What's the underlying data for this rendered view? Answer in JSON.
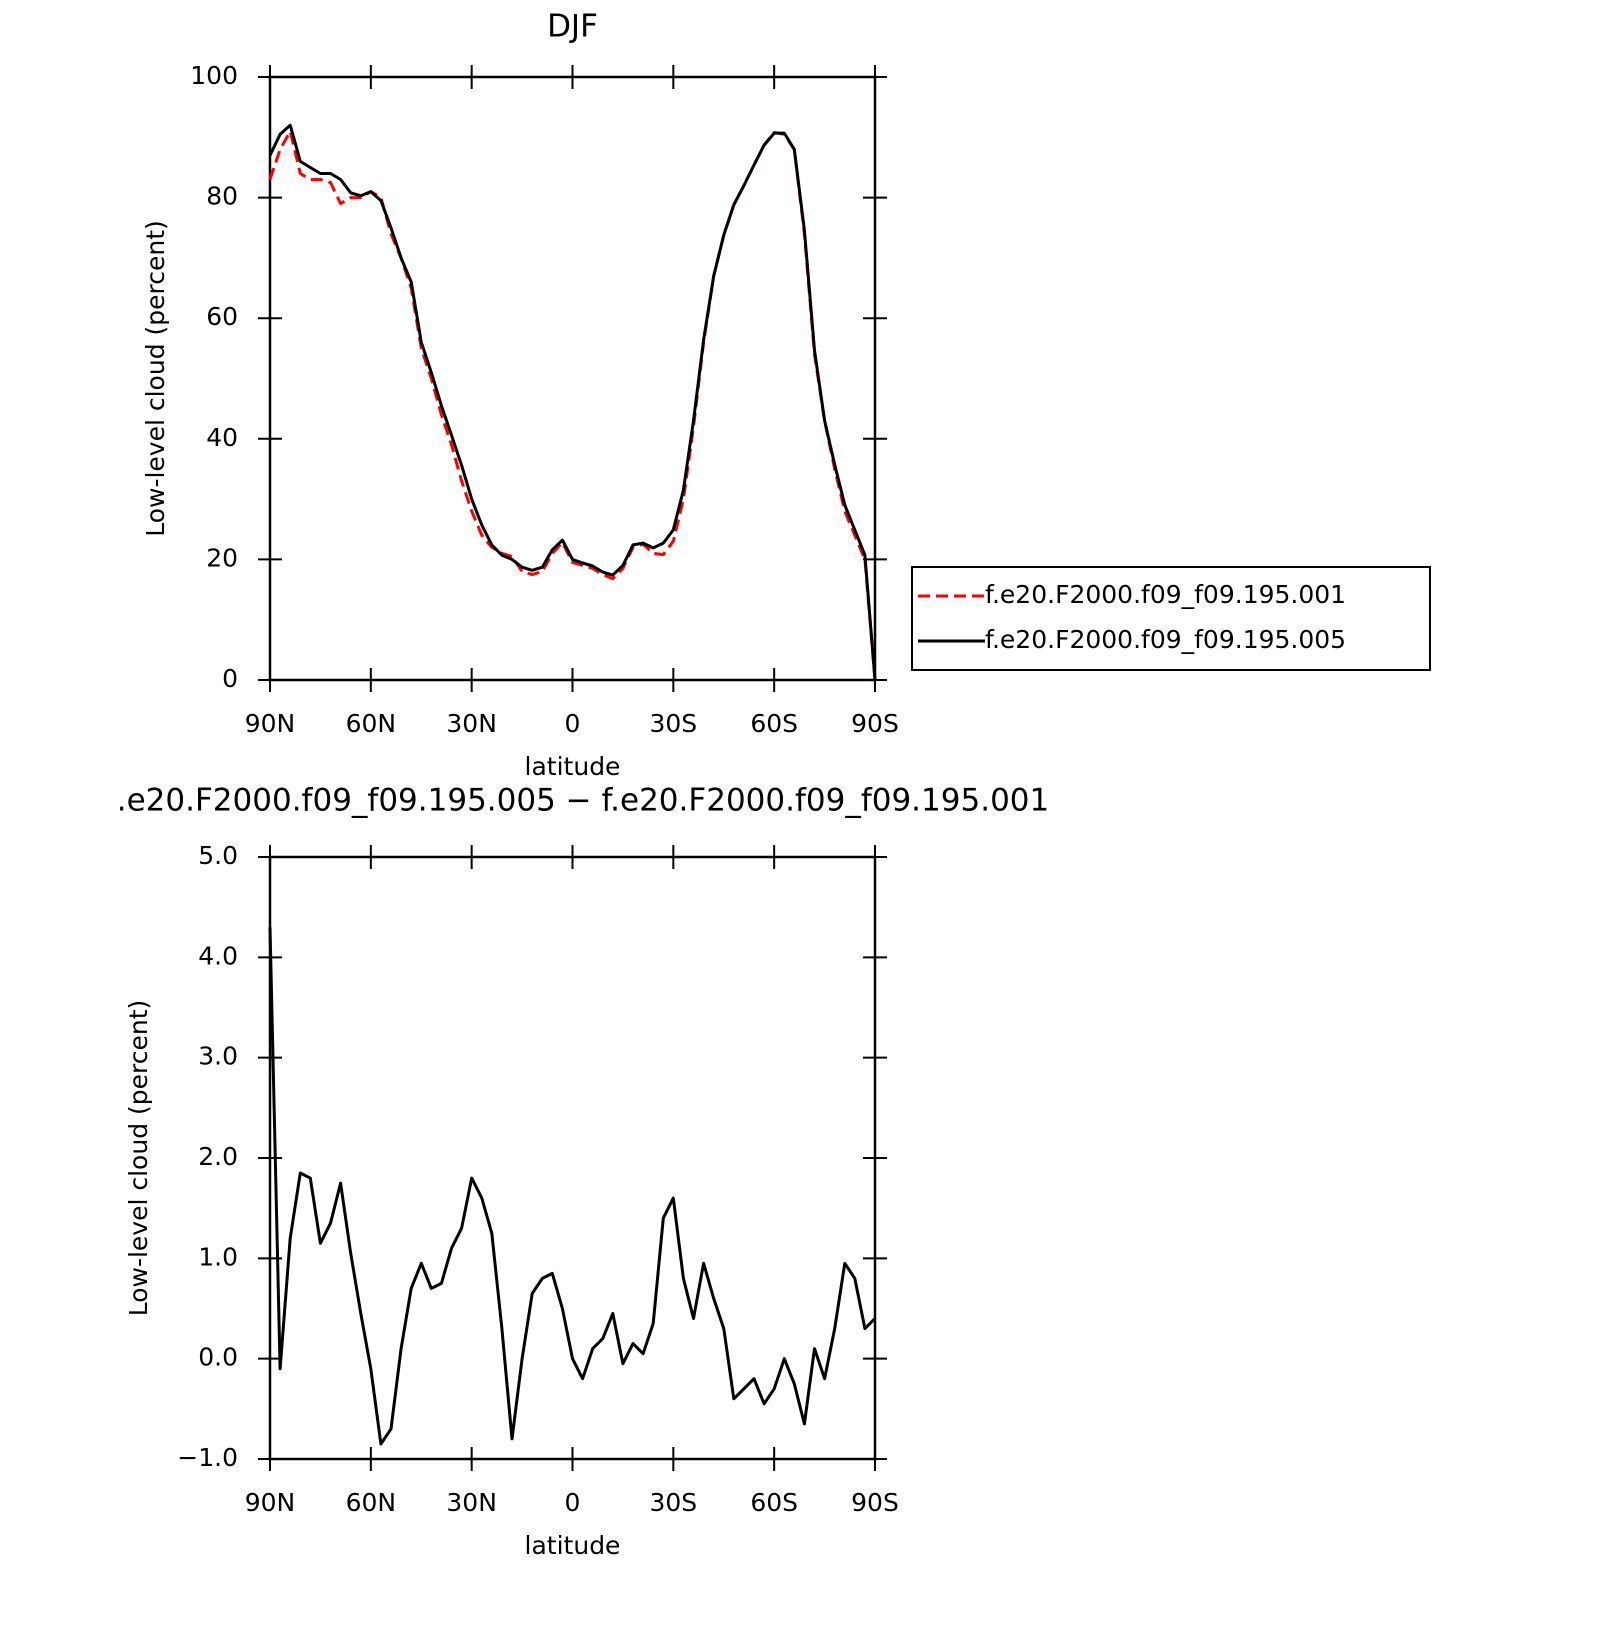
{
  "chart_data": [
    {
      "type": "line",
      "title": "DJF",
      "x_label": "latitude",
      "y_label": "Low-level cloud (percent)",
      "x": [
        90,
        87,
        84,
        81,
        78,
        75,
        72,
        69,
        66,
        63,
        60,
        57,
        54,
        51,
        48,
        45,
        42,
        39,
        36,
        33,
        30,
        27,
        24,
        21,
        18,
        15,
        12,
        9,
        6,
        3,
        0,
        -3,
        -6,
        -9,
        -12,
        -15,
        -18,
        -21,
        -24,
        -27,
        -30,
        -33,
        -36,
        -39,
        -42,
        -45,
        -48,
        -51,
        -54,
        -57,
        -60,
        -63,
        -66,
        -69,
        -72,
        -75,
        -78,
        -81,
        -84,
        -87,
        -90
      ],
      "series": [
        {
          "name": "f.e20.F2000.f09_f09.195.001",
          "color": "#ff0000",
          "dash": true,
          "values": [
            83,
            88,
            91,
            84,
            83,
            83,
            82.5,
            79,
            80,
            80,
            81,
            80,
            74,
            70,
            65,
            55,
            50,
            44,
            39,
            33,
            28,
            24,
            22,
            21,
            20.5,
            18,
            17.5,
            18,
            21,
            22.8,
            19.5,
            19,
            18.5,
            17.5,
            16.8,
            18.5,
            22,
            22.5,
            21,
            20.8,
            23,
            30,
            42,
            56,
            67,
            73.8,
            78.8,
            82,
            85.4,
            88.7,
            90.8,
            90.5,
            88,
            74,
            54,
            43,
            35,
            28,
            24,
            20,
            0
          ]
        },
        {
          "name": "f.e20.F2000.f09_f09.195.005",
          "color": "#000000",
          "dash": false,
          "values": [
            87,
            90.5,
            92,
            86,
            85,
            84,
            84,
            83,
            80.8,
            80.3,
            81,
            79.5,
            75,
            70,
            66,
            56,
            51,
            45.5,
            40.6,
            35.6,
            30,
            25.7,
            22.4,
            20.7,
            20,
            18.7,
            18.2,
            18.7,
            21.6,
            23.2,
            20,
            19.4,
            18.9,
            17.9,
            17.4,
            19,
            22.4,
            22.7,
            21.9,
            22.7,
            24.9,
            31.5,
            43,
            56.4,
            67,
            73.8,
            78.8,
            82,
            85.4,
            88.7,
            90.7,
            90.7,
            88,
            74.6,
            54.7,
            43,
            35.7,
            29,
            24.9,
            20.7,
            0
          ]
        }
      ],
      "xlim": [
        90,
        -90
      ],
      "xticks": [
        {
          "value": 90,
          "label": "90N"
        },
        {
          "value": 60,
          "label": "60N"
        },
        {
          "value": 30,
          "label": "30N"
        },
        0,
        {
          "value": -30,
          "label": "30S"
        },
        {
          "value": -60,
          "label": "60S"
        },
        {
          "value": -90,
          "label": "90S"
        }
      ],
      "ylim": [
        0,
        100
      ],
      "yticks": [
        0,
        20,
        40,
        60,
        80,
        100
      ],
      "legend": "right"
    },
    {
      "type": "line",
      "title": ".e20.F2000.f09_f09.195.005 − f.e20.F2000.f09_f09.195.001",
      "x_label": "latitude",
      "y_label": "Low-level cloud (percent)",
      "x": [
        90,
        87,
        84,
        81,
        78,
        75,
        72,
        69,
        66,
        63,
        60,
        57,
        54,
        51,
        48,
        45,
        42,
        39,
        36,
        33,
        30,
        27,
        24,
        21,
        18,
        15,
        12,
        9,
        6,
        3,
        0,
        -3,
        -6,
        -9,
        -12,
        -15,
        -18,
        -21,
        -24,
        -27,
        -30,
        -33,
        -36,
        -39,
        -42,
        -45,
        -48,
        -51,
        -54,
        -57,
        -60,
        -63,
        -66,
        -69,
        -72,
        -75,
        -78,
        -81,
        -84,
        -87,
        -90
      ],
      "series": [
        {
          "color": "#000000",
          "dash": false,
          "values": [
            4.3,
            -0.1,
            1.2,
            1.85,
            1.8,
            1.15,
            1.35,
            1.75,
            1.05,
            0.45,
            -0.1,
            -0.85,
            -0.7,
            0.1,
            0.7,
            0.95,
            0.7,
            0.75,
            1.1,
            1.3,
            1.8,
            1.6,
            1.25,
            0.3,
            -0.8,
            0,
            0.65,
            0.8,
            0.85,
            0.5,
            0,
            -0.2,
            0.1,
            0.2,
            0.45,
            -0.05,
            0.15,
            0.05,
            0.35,
            1.4,
            1.6,
            0.8,
            0.4,
            0.95,
            0.6,
            0.3,
            -0.4,
            -0.3,
            -0.2,
            -0.45,
            -0.3,
            0,
            -0.25,
            -0.65,
            0.1,
            -0.2,
            0.3,
            0.95,
            0.8,
            0.3,
            0.4
          ]
        }
      ],
      "xlim": [
        90,
        -90
      ],
      "xticks": [
        {
          "value": 90,
          "label": "90N"
        },
        {
          "value": 60,
          "label": "60N"
        },
        {
          "value": 30,
          "label": "30N"
        },
        0,
        {
          "value": -30,
          "label": "30S"
        },
        {
          "value": -60,
          "label": "60S"
        },
        {
          "value": -90,
          "label": "90S"
        }
      ],
      "ylim": [
        -1,
        5
      ],
      "yticks": [
        {
          "value": -1,
          "label": "−1.0"
        },
        {
          "value": 0,
          "label": "0.0"
        },
        {
          "value": 1,
          "label": "1.0"
        },
        {
          "value": 2,
          "label": "2.0"
        },
        {
          "value": 3,
          "label": "3.0"
        },
        {
          "value": 4,
          "label": "4.0"
        },
        {
          "value": 5,
          "label": "5.0"
        }
      ]
    }
  ]
}
